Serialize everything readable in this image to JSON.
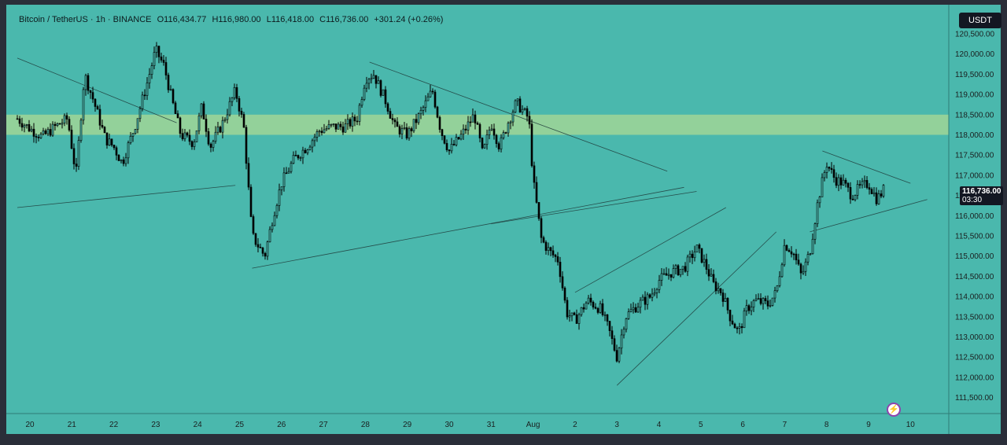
{
  "header": {
    "symbol": "Bitcoin / TetherUS · 1h · BINANCE",
    "open": "O116,434.77",
    "high": "H116,980.00",
    "low": "L116,418.00",
    "close": "C116,736.00",
    "change": "+301.24 (+0.26%)"
  },
  "currency": "USDT",
  "last_price": {
    "price": "116,736.00",
    "countdown": "03:30"
  },
  "colors": {
    "background": "#4ab8ad",
    "zone": "#cfe68a",
    "candle": "#000000"
  },
  "icons": {
    "flash": "lightning-icon"
  },
  "chart_data": {
    "type": "candlestick",
    "y_ticks": [
      "120,500.00",
      "120,000.00",
      "119,500.00",
      "119,000.00",
      "118,500.00",
      "118,000.00",
      "117,500.00",
      "117,000.00",
      "116,500.00",
      "116,000.00",
      "115,500.00",
      "115,000.00",
      "114,500.00",
      "114,000.00",
      "113,500.00",
      "113,000.00",
      "112,500.00",
      "112,000.00",
      "111,500.00"
    ],
    "x_ticks": [
      "20",
      "21",
      "22",
      "23",
      "24",
      "25",
      "26",
      "27",
      "28",
      "29",
      "30",
      "31",
      "Aug",
      "2",
      "3",
      "4",
      "5",
      "6",
      "7",
      "8",
      "9",
      "10"
    ],
    "ylim": [
      111200,
      120900
    ],
    "resistance_zone": [
      118000,
      118500
    ],
    "path_points": [
      [
        "19.7",
        118400
      ],
      [
        "20",
        118150
      ],
      [
        "20.3",
        117950
      ],
      [
        "20.6",
        118200
      ],
      [
        "20.9",
        118400
      ],
      [
        "21.1",
        117000
      ],
      [
        "21.3",
        119500
      ],
      [
        "21.5",
        118900
      ],
      [
        "21.8",
        117900
      ],
      [
        "22",
        117700
      ],
      [
        "22.2",
        117300
      ],
      [
        "22.5",
        118200
      ],
      [
        "22.8",
        119300
      ],
      [
        "23",
        120100
      ],
      [
        "23.2",
        119700
      ],
      [
        "23.4",
        118800
      ],
      [
        "23.6",
        118000
      ],
      [
        "23.9",
        117800
      ],
      [
        "24.1",
        118700
      ],
      [
        "24.3",
        117700
      ],
      [
        "24.6",
        118300
      ],
      [
        "24.9",
        119100
      ],
      [
        "25.1",
        118200
      ],
      [
        "25.3",
        115500
      ],
      [
        "25.6",
        115000
      ],
      [
        "25.8",
        116000
      ],
      [
        "26",
        116800
      ],
      [
        "26.3",
        117400
      ],
      [
        "26.6",
        117700
      ],
      [
        "26.9",
        118100
      ],
      [
        "27.2",
        118200
      ],
      [
        "27.5",
        118200
      ],
      [
        "27.8",
        118400
      ],
      [
        "28",
        119400
      ],
      [
        "28.2",
        119500
      ],
      [
        "28.5",
        118800
      ],
      [
        "28.7",
        118200
      ],
      [
        "29",
        118000
      ],
      [
        "29.3",
        118500
      ],
      [
        "29.6",
        119100
      ],
      [
        "29.8",
        118100
      ],
      [
        "30",
        117600
      ],
      [
        "30.3",
        118000
      ],
      [
        "30.6",
        118500
      ],
      [
        "30.8",
        117500
      ],
      [
        "31",
        118300
      ],
      [
        "31.2",
        117700
      ],
      [
        "31.4",
        118300
      ],
      [
        "31.6",
        118800
      ],
      [
        "31.9",
        118400
      ],
      [
        "Aug 1",
        116900
      ],
      [
        "Aug 1.2",
        115400
      ],
      [
        "Aug 1.4",
        115100
      ],
      [
        "Aug 1.6",
        114900
      ],
      [
        "Aug 1.8",
        113600
      ],
      [
        "2",
        113400
      ],
      [
        "2.3",
        113900
      ],
      [
        "2.6",
        113700
      ],
      [
        "2.8",
        113200
      ],
      [
        "3",
        112500
      ],
      [
        "3.2",
        113500
      ],
      [
        "3.5",
        113800
      ],
      [
        "3.8",
        114000
      ],
      [
        "4",
        114400
      ],
      [
        "4.3",
        114600
      ],
      [
        "4.6",
        114700
      ],
      [
        "4.9",
        115200
      ],
      [
        "5.1",
        114800
      ],
      [
        "5.3",
        114300
      ],
      [
        "5.5",
        114100
      ],
      [
        "5.7",
        113500
      ],
      [
        "5.9",
        113100
      ],
      [
        "6.1",
        113700
      ],
      [
        "6.3",
        113900
      ],
      [
        "6.6",
        113800
      ],
      [
        "6.8",
        114100
      ],
      [
        "7",
        115300
      ],
      [
        "7.2",
        115100
      ],
      [
        "7.4",
        114500
      ],
      [
        "7.6",
        115100
      ],
      [
        "7.8",
        116400
      ],
      [
        "8",
        117300
      ],
      [
        "8.2",
        116900
      ],
      [
        "8.4",
        116800
      ],
      [
        "8.6",
        116500
      ],
      [
        "8.8",
        116700
      ],
      [
        "9",
        116800
      ],
      [
        "9.2",
        116400
      ],
      [
        "9.4",
        116700
      ]
    ],
    "trendlines": [
      [
        [
          "19.7",
          119900
        ],
        [
          "23.5",
          118300
        ]
      ],
      [
        [
          "19.7",
          116200
        ],
        [
          "24.9",
          116750
        ]
      ],
      [
        [
          "25.3",
          114700
        ],
        [
          "4.6",
          116700
        ]
      ],
      [
        [
          "28.1",
          119800
        ],
        [
          "4.2",
          117100
        ]
      ],
      [
        [
          "31",
          115800
        ],
        [
          "4.9",
          116600
        ]
      ],
      [
        [
          "2",
          114100
        ],
        [
          "5.6",
          116200
        ]
      ],
      [
        [
          "3",
          111800
        ],
        [
          "6.8",
          115600
        ]
      ],
      [
        [
          "7.6",
          115600
        ],
        [
          "10.4",
          116400
        ]
      ],
      [
        [
          "7.9",
          117600
        ],
        [
          "10",
          116800
        ]
      ]
    ]
  }
}
